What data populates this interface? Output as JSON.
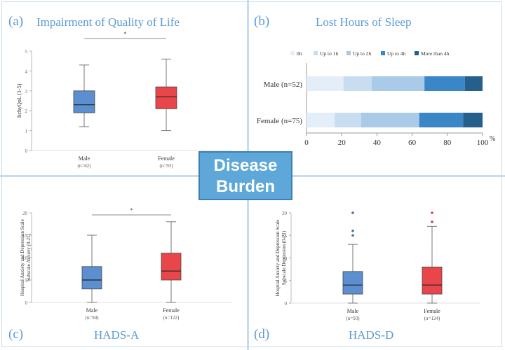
{
  "center_label": {
    "line1": "Disease",
    "line2": "Burden"
  },
  "panels": {
    "a": {
      "letter": "(a)",
      "title": "Impairment of Quality of Life"
    },
    "b": {
      "letter": "(b)",
      "title": "Lost Hours of Sleep"
    },
    "c": {
      "letter": "(c)",
      "title": "HADS-A"
    },
    "d": {
      "letter": "(d)",
      "title": "HADS-D"
    }
  },
  "colors": {
    "male": "#5b8fcf",
    "female": "#e8464a",
    "accent": "#5b9bd5"
  },
  "chart_data": [
    {
      "id": "a",
      "type": "box",
      "title": "Impairment of Quality of Life",
      "ylabel": "ItchyQoL (1-5)",
      "ylim": [
        0,
        5
      ],
      "yticks": [
        "0",
        "1",
        "2",
        "3",
        "4",
        "5"
      ],
      "significance": "*",
      "groups": [
        {
          "label": "Male",
          "n": "(n=62)",
          "whisker_low": 1.2,
          "q1": 1.9,
          "median": 2.3,
          "q3": 3.0,
          "whisker_high": 4.3,
          "outliers": []
        },
        {
          "label": "Female",
          "n": "(n=93)",
          "whisker_low": 1.0,
          "q1": 2.1,
          "median": 2.7,
          "q3": 3.2,
          "whisker_high": 4.6,
          "outliers": []
        }
      ]
    },
    {
      "id": "b",
      "type": "stacked-bar-horizontal",
      "title": "Lost Hours of Sleep",
      "xunit": "%",
      "xlim": [
        0,
        100
      ],
      "xticks": [
        "0",
        "20",
        "40",
        "60",
        "80",
        "100"
      ],
      "legend": [
        "0h",
        "Up to 1h",
        "Up to 2h",
        "Up to 4h",
        "More than 4h"
      ],
      "series_colors": [
        "#e3eef9",
        "#c8ddf0",
        "#a9cbe8",
        "#3a87c8",
        "#255f8c"
      ],
      "categories": [
        "Male (n=52)",
        "Female (n=75)"
      ],
      "series": [
        {
          "name": "0h",
          "values": [
            21,
            16
          ]
        },
        {
          "name": "Up to 1h",
          "values": [
            16,
            15
          ]
        },
        {
          "name": "Up to 2h",
          "values": [
            30,
            33
          ]
        },
        {
          "name": "Up to 4h",
          "values": [
            23,
            25
          ]
        },
        {
          "name": "More than 4h",
          "values": [
            10,
            11
          ]
        }
      ]
    },
    {
      "id": "c",
      "type": "box",
      "title": "HADS-A",
      "ylabel": "Hospital Anxiety and Depression Scale Subscale Anxiety (0-21)",
      "ylabel_lines": [
        "Hospital Anxiety and Depression Scale",
        "Subscale Anxiety (0-21)"
      ],
      "ylim": [
        0,
        20
      ],
      "yticks": [
        "0",
        "5",
        "10",
        "15",
        "20"
      ],
      "significance": "*",
      "groups": [
        {
          "label": "Male",
          "n": "(n=94)",
          "whisker_low": 0,
          "q1": 3,
          "median": 5,
          "q3": 8,
          "whisker_high": 15,
          "outliers": []
        },
        {
          "label": "Female",
          "n": "(n=122)",
          "whisker_low": 0,
          "q1": 5,
          "median": 7,
          "q3": 11,
          "whisker_high": 18,
          "outliers": []
        }
      ]
    },
    {
      "id": "d",
      "type": "box",
      "title": "HADS-D",
      "ylabel": "Hospital Anxiety and Depression Scale Subscale Depression (0-21)",
      "ylabel_lines": [
        "Hospital Anxiety and Depression Scale",
        "Subscale Depression (0-21)"
      ],
      "ylim": [
        0,
        20
      ],
      "yticks": [
        "0",
        "5",
        "10",
        "15",
        "20"
      ],
      "significance": "",
      "groups": [
        {
          "label": "Male",
          "n": "(n=93)",
          "whisker_low": 0,
          "q1": 2,
          "median": 4,
          "q3": 7,
          "whisker_high": 13,
          "outliers": [
            15,
            16,
            20
          ]
        },
        {
          "label": "Female",
          "n": "(n=124)",
          "whisker_low": 0,
          "q1": 2,
          "median": 4,
          "q3": 8,
          "whisker_high": 17,
          "outliers": [
            18,
            20
          ]
        }
      ]
    }
  ]
}
